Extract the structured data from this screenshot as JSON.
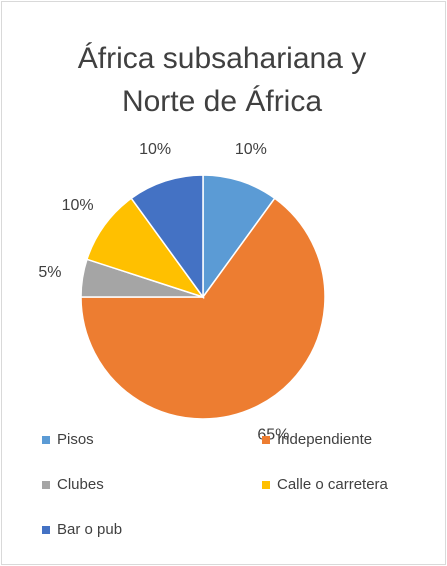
{
  "chart_data": {
    "type": "pie",
    "title": [
      "África subsahariana y",
      "Norte de África"
    ],
    "categories": [
      "Pisos",
      "Independiente",
      "Clubes",
      "Calle o carretera",
      "Bar o pub"
    ],
    "values": [
      10,
      65,
      5,
      10,
      10
    ],
    "value_labels": [
      "10%",
      "65%",
      "5%",
      "10%",
      "10%"
    ],
    "colors": [
      "#5b9bd5",
      "#ed7d31",
      "#a5a5a5",
      "#ffc000",
      "#4472c4"
    ],
    "legend": "bottom"
  }
}
